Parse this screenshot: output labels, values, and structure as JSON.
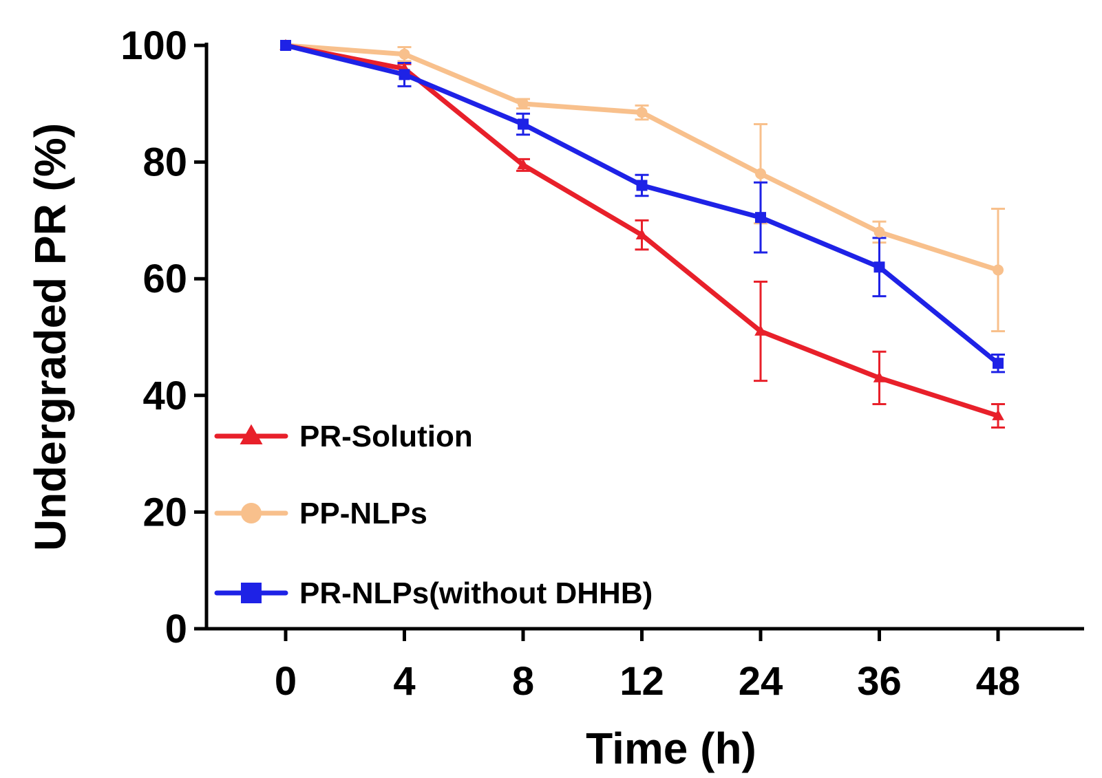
{
  "chart_data": {
    "type": "line",
    "title": "",
    "xlabel": "Time (h)",
    "ylabel": "Undergraded PR (%)",
    "categories": [
      "0",
      "4",
      "8",
      "12",
      "24",
      "36",
      "48"
    ],
    "ylim": [
      0,
      100
    ],
    "yticks": [
      0,
      20,
      40,
      60,
      80,
      100
    ],
    "grid": false,
    "legend_position": "bottom-left",
    "series": [
      {
        "name": "PR-Solution",
        "color": "#e8202a",
        "marker": "triangle",
        "values": [
          100,
          96,
          79.5,
          67.5,
          51,
          43,
          36.5
        ],
        "errors": [
          0,
          0.8,
          1,
          2.5,
          8.5,
          4.5,
          2
        ]
      },
      {
        "name": "PP-NLPs",
        "color": "#f8c08c",
        "marker": "circle",
        "values": [
          100,
          98.5,
          90,
          88.5,
          78,
          68,
          61.5
        ],
        "errors": [
          0,
          1.2,
          0.8,
          1.2,
          8.5,
          1.8,
          10.5
        ]
      },
      {
        "name": "PR-NLPs(without DHHB)",
        "color": "#1e22e6",
        "marker": "square",
        "values": [
          100,
          95,
          86.5,
          76,
          70.5,
          62,
          45.5
        ],
        "errors": [
          0,
          2,
          1.8,
          1.8,
          6,
          5,
          1.5
        ]
      }
    ]
  }
}
